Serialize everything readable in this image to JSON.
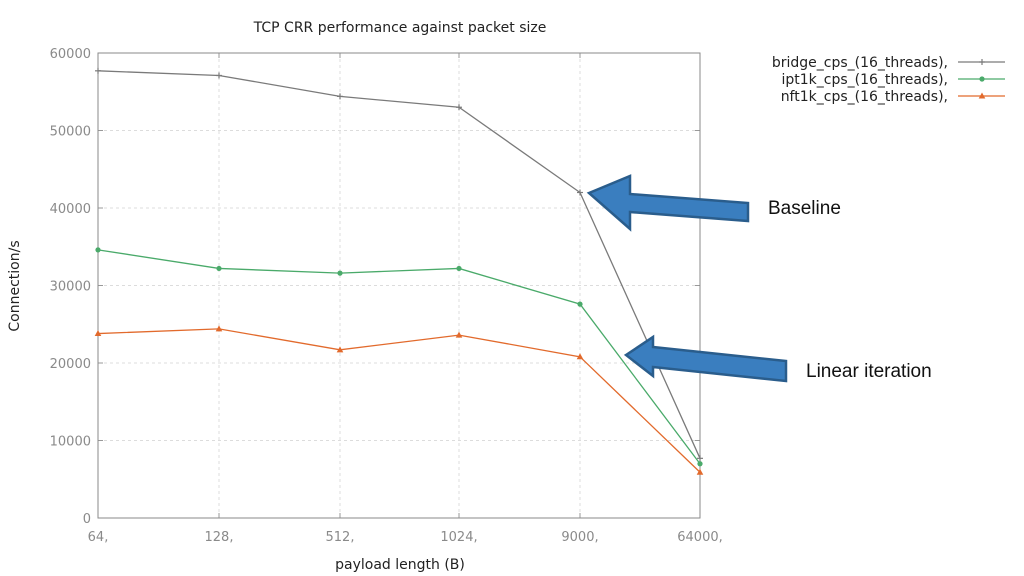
{
  "chart_data": {
    "type": "line",
    "title": "TCP CRR performance against packet size",
    "xlabel": "payload length (B)",
    "ylabel": "Connection/s",
    "categories": [
      "64,",
      "128,",
      "512,",
      "1024,",
      "9000,",
      "64000,"
    ],
    "ylim": [
      0,
      60000
    ],
    "yticks": [
      "0",
      "10000",
      "20000",
      "30000",
      "40000",
      "50000",
      "60000"
    ],
    "grid": true,
    "legend_position": "top-right",
    "series": [
      {
        "name": "bridge_cps_(16_threads),",
        "color": "#7a7a7a",
        "marker": "plus",
        "values": [
          57700,
          57100,
          54400,
          53000,
          42000,
          7700
        ]
      },
      {
        "name": "ipt1k_cps_(16_threads),",
        "color": "#4aaa6a",
        "marker": "circle",
        "values": [
          34600,
          32200,
          31600,
          32200,
          27600,
          7000
        ]
      },
      {
        "name": "nft1k_cps_(16_threads),",
        "color": "#e26a2c",
        "marker": "triangle",
        "values": [
          23800,
          24400,
          21700,
          23600,
          20800,
          5900
        ]
      }
    ],
    "annotations": [
      {
        "text": "Baseline",
        "color": "#3a7ebf"
      },
      {
        "text": "Linear iteration",
        "color": "#3a7ebf"
      }
    ]
  }
}
